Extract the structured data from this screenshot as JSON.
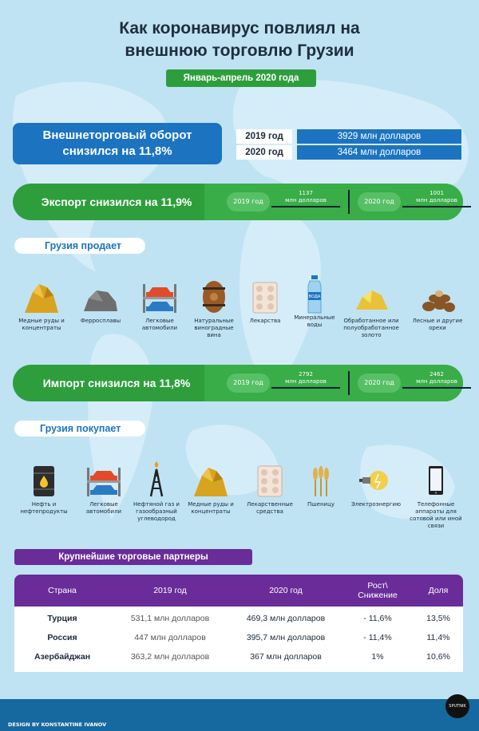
{
  "title_line1": "Как коронавирус повлиял на",
  "title_line2": "внешнюю торговлю Грузии",
  "period": "Январь-апрель 2020 года",
  "trade": {
    "headline_line1": "Внешнеторговый оборот",
    "headline_line2": "снизился на 11,8%",
    "rows": [
      {
        "year": "2019 год",
        "value": "3929 млн долларов"
      },
      {
        "year": "2020 год",
        "value": "3464 млн долларов"
      }
    ]
  },
  "export": {
    "label": "Экспорт снизился на 11,9%",
    "y2019": "2019 год",
    "v2019": "1137",
    "u2019": "млн долларов",
    "y2020": "2020 год",
    "v2020": "1001",
    "u2020": "млн долларов"
  },
  "sells": {
    "tag": "Грузия продает",
    "items": [
      {
        "icon": "ore-icon",
        "label": "Медные руды и концентраты"
      },
      {
        "icon": "ferroalloy-icon",
        "label": "Ферросплавы"
      },
      {
        "icon": "cars-icon",
        "label": "Легковые автомобили"
      },
      {
        "icon": "wine-barrel-icon",
        "label": "Натуральные виноградные вина"
      },
      {
        "icon": "pills-icon",
        "label": "Лекарства"
      },
      {
        "icon": "water-bottle-icon",
        "label": "Минеральные воды",
        "bottle_text": "ВОДА"
      },
      {
        "icon": "gold-icon",
        "label": "Обработанное или полуобработанное золото"
      },
      {
        "icon": "nuts-icon",
        "label": "Лесные и другие орехи"
      }
    ]
  },
  "import": {
    "label": "Импорт снизился на 11,8%",
    "y2019": "2019 год",
    "v2019": "2792",
    "u2019": "млн долларов",
    "y2020": "2020 год",
    "v2020": "2462",
    "u2020": "млн долларов"
  },
  "buys": {
    "tag": "Грузия покупает",
    "items": [
      {
        "icon": "oil-barrel-icon",
        "label": "Нефть и нефтепродукты"
      },
      {
        "icon": "cars-icon",
        "label": "Легковые автомобили"
      },
      {
        "icon": "gas-rig-icon",
        "label": "Нефтяной газ и газообразный углеводород"
      },
      {
        "icon": "ore-icon",
        "label": "Медные руды и концентраты"
      },
      {
        "icon": "pills-icon",
        "label": "Лекарственные средства"
      },
      {
        "icon": "wheat-icon",
        "label": "Пшеницу"
      },
      {
        "icon": "lightbulb-icon",
        "label": "Электроэнергию"
      },
      {
        "icon": "phone-icon",
        "label": "Телефонные аппараты для сотовой или иной связи"
      }
    ]
  },
  "partners": {
    "tag": "Крупнейшие торговые партнеры",
    "headers": {
      "country": "Страна",
      "y2019": "2019 год",
      "y2020": "2020 год",
      "change_line1": "Рост\\",
      "change_line2": "Снижение",
      "share": "Доля"
    },
    "rows": [
      {
        "country": "Турция",
        "y2019": "531,1 млн долларов",
        "y2020": "469,3 млн долларов",
        "change": "- 11,6%",
        "share": "13,5%"
      },
      {
        "country": "Россия",
        "y2019": "447 млн долларов",
        "y2020": "395,7 млн долларов",
        "change": "- 11,4%",
        "share": "11,4%"
      },
      {
        "country": "Азербайджан",
        "y2019": "363,2 млн долларов",
        "y2020": "367 млн долларов",
        "change": "1%",
        "share": "10,6%"
      }
    ]
  },
  "footer": {
    "credit": "DESIGN BY KONSTANTINE IVANOV",
    "logo": "SPUTNIK"
  },
  "colors": {
    "blue": "#1c74c0",
    "green": "#2e9e3d",
    "purple": "#6a2c99",
    "bg": "#bfe3f3"
  }
}
